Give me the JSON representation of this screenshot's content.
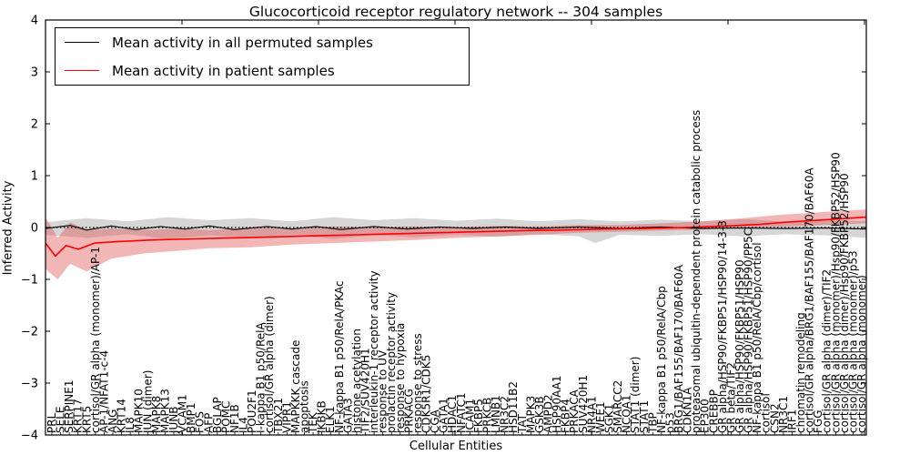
{
  "title": "Glucocorticoid receptor regulatory network -- 304 samples",
  "chart_data": {
    "type": "line",
    "title": "Glucocorticoid receptor regulatory network -- 304 samples",
    "xlabel": "Cellular Entities",
    "ylabel": "Inferred Activity",
    "ylim": [
      -4,
      4
    ],
    "yticks": [
      -4,
      -3,
      -2,
      -1,
      0,
      1,
      2,
      3,
      4
    ],
    "grid": false,
    "legend_position": "upper left",
    "legend": [
      {
        "label": "Mean activity in all permuted samples",
        "color": "#000000"
      },
      {
        "label": "Mean activity in patient samples",
        "color": "#ff0000"
      }
    ],
    "zero_line": {
      "value": 0,
      "style": "dotted",
      "color": "#000000"
    },
    "categories": [
      "PRL",
      "SELE",
      "SERPINE1",
      "KRT17",
      "KRT5",
      "cortisol/GR alpha (monomer)/AP-1",
      "AP-1/NFAT1-c-4",
      "ANG",
      "KRT14",
      "IL8",
      "MAPK10",
      "JUN (dimer)",
      "MAPK8",
      "MAPK13",
      "JUNB",
      "VCAM1",
      "BMP1",
      "FOS",
      "AFP",
      "BGLAP",
      "POMC",
      "NF1B",
      "IL4",
      "POU2F1",
      "I-kappa B1 p50/RelA",
      "cortisol/GR alpha (dimer)",
      "TBX21",
      "VIPR1",
      "MAPKKK cascade",
      "apoptosis",
      "TEK",
      "IKBKB",
      "ELK1",
      "NF-kappa B1 p50/RelA/PKAc",
      "GATA3",
      "histone acetylation",
      "TIF2/SUV420H1",
      "interleukin-1 receptor activity",
      "response to UV",
      "prolactin receptor activity",
      "response to hypoxia",
      "PRKACG",
      "response to stress",
      "CDK5R1/CDK5",
      "CGA",
      "GATA1",
      "HDAC1",
      "NFATC1",
      "ICAM1",
      "FKBP5",
      "PRKCB",
      "LMNB1",
      "NR3C2",
      "HSD11B2",
      "TAT",
      "MAPK3",
      "GSK3B",
      "AMPD2",
      "HSP90AA1",
      "FKBP4",
      "PRKACA",
      "SUV420H1",
      "NR4A1",
      "WEE1",
      "SGK1",
      "SMARCC2",
      "NCOA1",
      "STAT1 (dimer)",
      "STAT1",
      "TBP",
      "NF-kappa B1 p50/RelA/Cbp",
      "p53",
      "BRG1/BAF155/BAF170/BAF60A",
      "CDKN1A",
      "proteasomal ubiquitin-dependent protein catabolic process",
      "EP300",
      "CREBBP",
      "GR alpha/HSP90/FKBP51/HSP90/14-3-3",
      "GR beta/TIF2",
      "GR alpha/HSP90/FKBP51/HSP90",
      "GR alpha/HSP90/FKBP51/HSP90/PP5C",
      "NF-kappa B1 p50/RelA/Cbp/cortisol",
      "cortisol",
      "CSN2",
      "NR3C1",
      "IRF1",
      "chromatin remodeling",
      "cortisol/GR alpha/BRG1/BAF155/BAF170/BAF60A",
      "FGG",
      "cortisol/GR alpha (dimer)/TIF2",
      "cortisol/GR alpha (monomer)/Hsp90/FKBP52/HSP90",
      "cortisol/GR alpha (dimer)/Hsp90/FKBP52/HSP90",
      "cortisol/GR alpha (monomer)/p53",
      "cortisol/GR alpha (monomer)"
    ],
    "series": [
      {
        "name": "Mean activity in all permuted samples",
        "color": "#000000",
        "width": 1.1,
        "points": [
          [
            0,
            -0.02
          ],
          [
            0.03,
            0.04
          ],
          [
            0.05,
            -0.05
          ],
          [
            0.08,
            0.03
          ],
          [
            0.11,
            -0.04
          ],
          [
            0.14,
            0.02
          ],
          [
            0.17,
            -0.03
          ],
          [
            0.2,
            0.03
          ],
          [
            0.23,
            -0.04
          ],
          [
            0.27,
            0.02
          ],
          [
            0.3,
            -0.03
          ],
          [
            0.33,
            0.02
          ],
          [
            0.36,
            -0.04
          ],
          [
            0.4,
            0.02
          ],
          [
            0.44,
            -0.03
          ],
          [
            0.48,
            0.01
          ],
          [
            0.52,
            -0.02
          ],
          [
            0.56,
            0.01
          ],
          [
            0.6,
            -0.02
          ],
          [
            0.65,
            0.01
          ],
          [
            0.7,
            -0.02
          ],
          [
            0.75,
            0.01
          ],
          [
            0.8,
            -0.02
          ],
          [
            0.85,
            -0.01
          ],
          [
            0.9,
            -0.02
          ],
          [
            0.95,
            -0.01
          ],
          [
            1,
            -0.03
          ]
        ]
      },
      {
        "name": "Mean activity in patient samples",
        "color": "#ff0000",
        "width": 1.6,
        "points": [
          [
            0,
            -0.3
          ],
          [
            0.012,
            -0.55
          ],
          [
            0.025,
            -0.35
          ],
          [
            0.04,
            -0.42
          ],
          [
            0.06,
            -0.3
          ],
          [
            0.09,
            -0.27
          ],
          [
            0.13,
            -0.24
          ],
          [
            0.18,
            -0.22
          ],
          [
            0.23,
            -0.2
          ],
          [
            0.28,
            -0.18
          ],
          [
            0.33,
            -0.16
          ],
          [
            0.38,
            -0.14
          ],
          [
            0.43,
            -0.12
          ],
          [
            0.48,
            -0.1
          ],
          [
            0.53,
            -0.08
          ],
          [
            0.58,
            -0.06
          ],
          [
            0.63,
            -0.05
          ],
          [
            0.68,
            -0.03
          ],
          [
            0.73,
            -0.02
          ],
          [
            0.78,
            0.0
          ],
          [
            0.83,
            0.03
          ],
          [
            0.87,
            0.06
          ],
          [
            0.9,
            0.1
          ],
          [
            0.93,
            0.13
          ],
          [
            0.96,
            0.16
          ],
          [
            1,
            0.2
          ]
        ]
      }
    ],
    "bands": [
      {
        "name": "permuted-samples-std-band",
        "color": "#999999",
        "opacity": 0.4,
        "upper": [
          [
            0,
            0.1
          ],
          [
            0.05,
            0.18
          ],
          [
            0.1,
            0.12
          ],
          [
            0.15,
            0.2
          ],
          [
            0.2,
            0.14
          ],
          [
            0.25,
            0.18
          ],
          [
            0.3,
            0.12
          ],
          [
            0.35,
            0.2
          ],
          [
            0.4,
            0.14
          ],
          [
            0.45,
            0.18
          ],
          [
            0.5,
            0.13
          ],
          [
            0.55,
            0.17
          ],
          [
            0.6,
            0.12
          ],
          [
            0.65,
            0.16
          ],
          [
            0.7,
            0.12
          ],
          [
            0.75,
            0.15
          ],
          [
            0.8,
            0.12
          ],
          [
            0.85,
            0.16
          ],
          [
            0.9,
            0.12
          ],
          [
            0.95,
            0.14
          ],
          [
            1,
            0.12
          ]
        ],
        "lower": [
          [
            0,
            -0.14
          ],
          [
            0.05,
            -0.2
          ],
          [
            0.1,
            -0.13
          ],
          [
            0.15,
            -0.22
          ],
          [
            0.2,
            -0.15
          ],
          [
            0.25,
            -0.2
          ],
          [
            0.3,
            -0.14
          ],
          [
            0.35,
            -0.22
          ],
          [
            0.4,
            -0.15
          ],
          [
            0.45,
            -0.19
          ],
          [
            0.5,
            -0.14
          ],
          [
            0.55,
            -0.18
          ],
          [
            0.6,
            -0.13
          ],
          [
            0.65,
            -0.17
          ],
          [
            0.67,
            -0.3
          ],
          [
            0.7,
            -0.14
          ],
          [
            0.75,
            -0.16
          ],
          [
            0.8,
            -0.13
          ],
          [
            0.85,
            -0.17
          ],
          [
            0.9,
            -0.13
          ],
          [
            0.95,
            -0.15
          ],
          [
            1,
            -0.2
          ]
        ]
      },
      {
        "name": "patient-samples-std-band",
        "color": "#e05050",
        "opacity": 0.42,
        "upper": [
          [
            0,
            0.2
          ],
          [
            0.015,
            -0.2
          ],
          [
            0.03,
            0.1
          ],
          [
            0.05,
            -0.05
          ],
          [
            0.08,
            -0.02
          ],
          [
            0.12,
            -0.05
          ],
          [
            0.16,
            -0.02
          ],
          [
            0.2,
            -0.05
          ],
          [
            0.25,
            0.0
          ],
          [
            0.3,
            -0.02
          ],
          [
            0.35,
            0.02
          ],
          [
            0.4,
            0.0
          ],
          [
            0.45,
            0.02
          ],
          [
            0.5,
            0.01
          ],
          [
            0.55,
            0.03
          ],
          [
            0.6,
            0.02
          ],
          [
            0.65,
            0.05
          ],
          [
            0.7,
            0.05
          ],
          [
            0.75,
            0.08
          ],
          [
            0.8,
            0.12
          ],
          [
            0.85,
            0.18
          ],
          [
            0.9,
            0.25
          ],
          [
            0.95,
            0.3
          ],
          [
            1,
            0.35
          ]
        ],
        "lower": [
          [
            0,
            -0.8
          ],
          [
            0.015,
            -1.0
          ],
          [
            0.03,
            -0.7
          ],
          [
            0.05,
            -0.85
          ],
          [
            0.08,
            -0.6
          ],
          [
            0.12,
            -0.5
          ],
          [
            0.16,
            -0.45
          ],
          [
            0.2,
            -0.4
          ],
          [
            0.25,
            -0.38
          ],
          [
            0.3,
            -0.33
          ],
          [
            0.35,
            -0.3
          ],
          [
            0.4,
            -0.27
          ],
          [
            0.45,
            -0.24
          ],
          [
            0.5,
            -0.2
          ],
          [
            0.55,
            -0.17
          ],
          [
            0.6,
            -0.14
          ],
          [
            0.65,
            -0.1
          ],
          [
            0.7,
            -0.08
          ],
          [
            0.75,
            -0.06
          ],
          [
            0.8,
            -0.04
          ],
          [
            0.85,
            0.0
          ],
          [
            0.9,
            0.02
          ],
          [
            0.95,
            0.05
          ],
          [
            1,
            0.08
          ]
        ]
      }
    ]
  }
}
